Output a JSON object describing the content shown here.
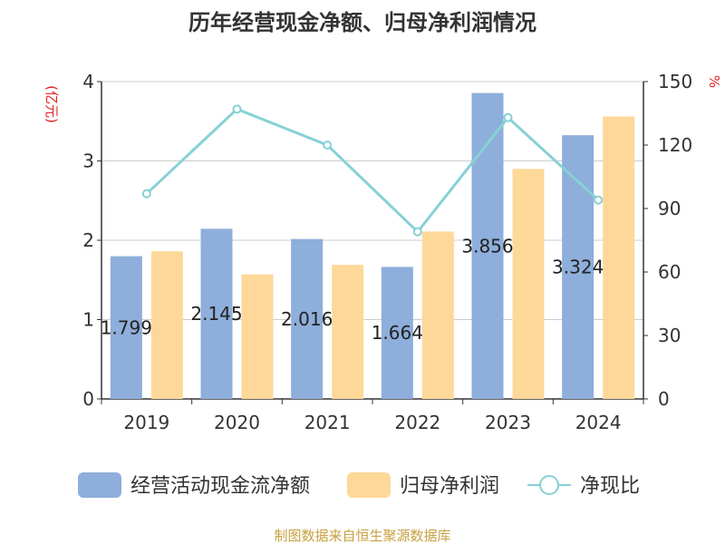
{
  "chart_data": {
    "type": "bar",
    "title": "历年经营现金净额、归母净利润情况",
    "categories": [
      "2019",
      "2020",
      "2021",
      "2022",
      "2023",
      "2024"
    ],
    "left_axis": {
      "label": "(亿元)",
      "ticks": [
        "0",
        "1",
        "2",
        "3",
        "4"
      ],
      "range": [
        0,
        4
      ]
    },
    "right_axis": {
      "label": "%",
      "ticks": [
        "0",
        "30",
        "60",
        "90",
        "120",
        "150"
      ],
      "range": [
        0,
        150
      ]
    },
    "series": [
      {
        "name": "经营活动现金流净额",
        "kind": "bar",
        "color": "#8eaedb",
        "values": [
          1.799,
          2.145,
          2.016,
          1.664,
          3.856,
          3.324
        ],
        "labels": [
          "1.799",
          "2.145",
          "2.016",
          "1.664",
          "3.856",
          "3.324"
        ]
      },
      {
        "name": "归母净利润",
        "kind": "bar",
        "color": "#fdd899",
        "values": [
          1.86,
          1.57,
          1.69,
          2.11,
          2.9,
          3.56
        ]
      },
      {
        "name": "净现比",
        "kind": "line",
        "color": "#86d1d6",
        "axis": "right",
        "values": [
          97,
          137,
          120,
          79,
          133,
          94
        ]
      }
    ],
    "grid": true,
    "legend_position": "bottom",
    "source": "制图数据来自恒生聚源数据库"
  }
}
